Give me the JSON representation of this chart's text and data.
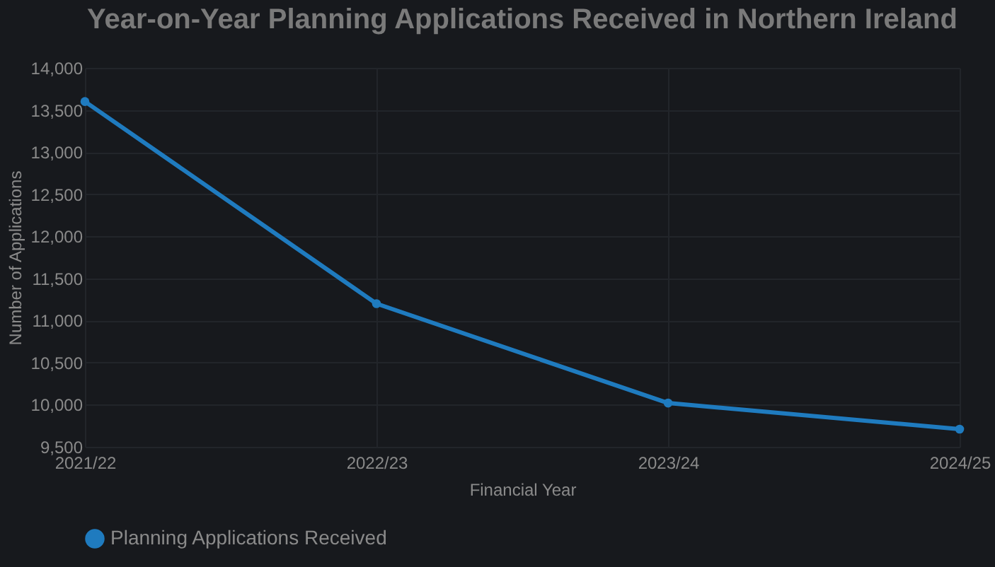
{
  "chart_data": {
    "type": "line",
    "title": "Year-on-Year Planning Applications Received in Northern Ireland",
    "xlabel": "Financial Year",
    "ylabel": "Number of Applications",
    "categories": [
      "2021/22",
      "2022/23",
      "2023/24",
      "2024/25"
    ],
    "series": [
      {
        "name": "Planning Applications Received",
        "color": "#1f7bbf",
        "values": [
          13600,
          11200,
          10020,
          9710
        ]
      }
    ],
    "ylim": [
      9500,
      14000
    ],
    "yticks": [
      {
        "value": 9500,
        "label": "9,500"
      },
      {
        "value": 10000,
        "label": "10,000"
      },
      {
        "value": 10500,
        "label": "10,500"
      },
      {
        "value": 11000,
        "label": "11,000"
      },
      {
        "value": 11500,
        "label": "11,500"
      },
      {
        "value": 12000,
        "label": "12,000"
      },
      {
        "value": 12500,
        "label": "12,500"
      },
      {
        "value": 13000,
        "label": "13,000"
      },
      {
        "value": 13500,
        "label": "13,500"
      },
      {
        "value": 14000,
        "label": "14,000"
      }
    ],
    "grid": true,
    "legend": "bottom",
    "marker": "circle",
    "line_style": "solid"
  }
}
